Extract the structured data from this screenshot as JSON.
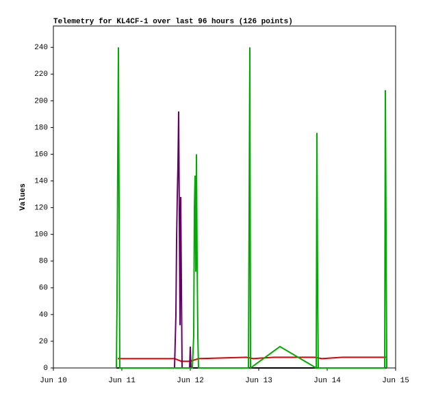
{
  "chart_data": {
    "type": "line",
    "title": "Telemetry for KL4CF-1 over last 96 hours (126 points)",
    "y_label": "Values",
    "xlim": [
      10,
      15
    ],
    "xticks": [
      {
        "value": 10,
        "label": "Jun 10"
      },
      {
        "value": 11,
        "label": "Jun 11"
      },
      {
        "value": 12,
        "label": "Jun 12"
      },
      {
        "value": 13,
        "label": "Jun 13"
      },
      {
        "value": 14,
        "label": "Jun 14"
      },
      {
        "value": 15,
        "label": "Jun 15"
      }
    ],
    "ylim": [
      0,
      256
    ],
    "yticks": [
      0,
      20,
      40,
      60,
      80,
      100,
      120,
      140,
      160,
      180,
      200,
      220,
      240
    ],
    "series": [
      {
        "color": "#000000",
        "x": [
          10.92,
          14.87
        ],
        "values": [
          0,
          0
        ]
      },
      {
        "color": "#dd0000",
        "x": [
          10.94,
          11.77,
          11.87,
          12.0,
          12.12,
          12.82,
          12.92,
          13.22,
          13.82,
          13.92,
          14.22,
          14.87
        ],
        "values": [
          7,
          7,
          5,
          5,
          7,
          8,
          7,
          8,
          8,
          7,
          8,
          8
        ]
      },
      {
        "color": "#660066",
        "x": [
          11.77,
          11.79,
          11.8,
          11.81,
          11.82,
          11.83,
          11.85,
          11.86,
          11.87,
          11.88,
          11.99,
          12.0,
          12.01
        ],
        "values": [
          0,
          40,
          96,
          128,
          152,
          192,
          32,
          128,
          64,
          0,
          0,
          16,
          0
        ]
      },
      {
        "color": "#00aa00",
        "x": [
          10.92,
          10.93,
          10.94,
          10.95,
          10.96,
          10.97,
          12.03,
          12.05,
          12.06,
          12.07,
          12.08,
          12.09,
          12.1,
          12.11,
          12.12,
          12.85,
          12.86,
          12.87,
          12.88,
          13.31,
          13.84,
          13.85,
          13.86,
          13.87,
          14.84,
          14.85,
          14.86,
          14.87
        ],
        "values": [
          0,
          52,
          156,
          240,
          120,
          0,
          0,
          24,
          120,
          144,
          72,
          160,
          80,
          24,
          0,
          0,
          120,
          240,
          0,
          16,
          0,
          176,
          64,
          0,
          0,
          208,
          104,
          0
        ]
      }
    ]
  }
}
